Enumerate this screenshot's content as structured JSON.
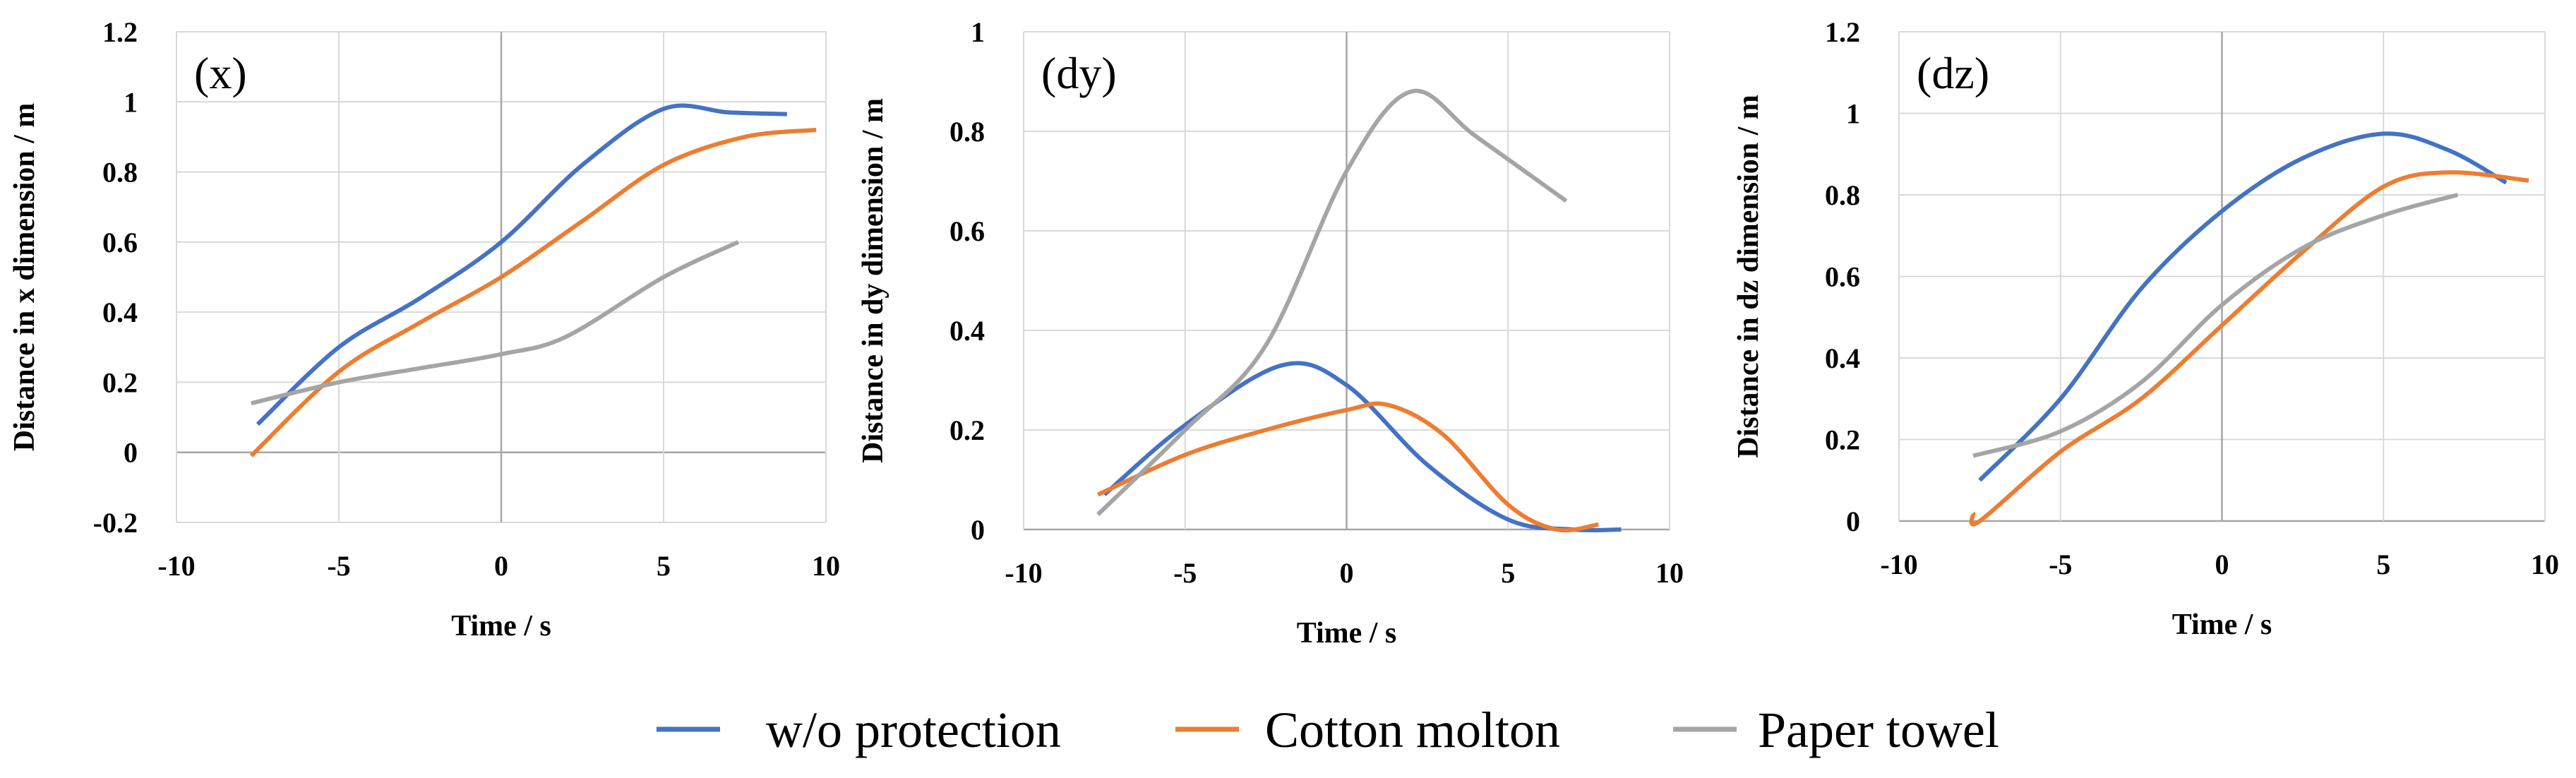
{
  "chart_data": {
    "type": "line",
    "colors": {
      "w/o protection": "#4472C4",
      "Cotton molton": "#ED7D31",
      "Paper towel": "#A5A5A5",
      "grid": "#D9D9D9",
      "zero_axis": "#A6A6A6"
    },
    "legend": {
      "placement": "bottom-center",
      "entries": [
        "w/o protection",
        "Cotton molton",
        "Paper towel"
      ]
    },
    "panels": [
      {
        "id": "x",
        "label": "(x)",
        "xlabel": "Time / s",
        "ylabel": "Distance in x dimension / m",
        "xlim": [
          -10,
          10
        ],
        "ylim": [
          -0.2,
          1.2
        ],
        "xticks": [
          -10,
          -5,
          0,
          5,
          10
        ],
        "xtick_labels": [
          "-10",
          "-5",
          "0",
          "5",
          "10"
        ],
        "yticks": [
          -0.2,
          0,
          0.2,
          0.4,
          0.6,
          0.8,
          1,
          1.2
        ],
        "ytick_labels": [
          "-0.2",
          "0",
          "0.2",
          "0.4",
          "0.6",
          "0.8",
          "1",
          "1.2"
        ],
        "series": [
          {
            "name": "w/o protection",
            "x": [
              -7.5,
              -5,
              -2.5,
              0,
              2.5,
              5,
              7,
              8.8
            ],
            "y": [
              0.08,
              0.3,
              0.44,
              0.6,
              0.82,
              0.98,
              0.97,
              0.965
            ]
          },
          {
            "name": "Cotton molton",
            "x": [
              -7.7,
              -5,
              -2.5,
              0,
              2.5,
              5,
              7.5,
              9.7
            ],
            "y": [
              -0.01,
              0.23,
              0.37,
              0.5,
              0.66,
              0.82,
              0.9,
              0.92
            ]
          },
          {
            "name": "Paper towel",
            "x": [
              -7.7,
              -5,
              -2.5,
              0,
              2,
              5,
              7.3
            ],
            "y": [
              0.14,
              0.2,
              0.24,
              0.28,
              0.33,
              0.5,
              0.6
            ]
          }
        ]
      },
      {
        "id": "dy",
        "label": "(dy)",
        "xlabel": "Time / s",
        "ylabel": "Distance in dy dimension / m",
        "xlim": [
          -10,
          10
        ],
        "ylim": [
          0,
          1
        ],
        "xticks": [
          -10,
          -5,
          0,
          5,
          10
        ],
        "xtick_labels": [
          "-10",
          "-5",
          "0",
          "5",
          "10"
        ],
        "yticks": [
          0,
          0.2,
          0.4,
          0.6,
          0.8,
          1
        ],
        "ytick_labels": [
          "0",
          "0.2",
          "0.4",
          "0.6",
          "0.8",
          "1"
        ],
        "series": [
          {
            "name": "w/o protection",
            "x": [
              -7.5,
              -5,
              -2,
              0,
              2.5,
              5,
              7,
              8.5
            ],
            "y": [
              0.07,
              0.21,
              0.33,
              0.29,
              0.13,
              0.02,
              0.0,
              0.0
            ]
          },
          {
            "name": "Cotton molton",
            "x": [
              -7.7,
              -5,
              -2.5,
              0,
              1.3,
              3,
              5,
              6.5,
              7.8
            ],
            "y": [
              0.07,
              0.15,
              0.2,
              0.24,
              0.25,
              0.19,
              0.05,
              0.0,
              0.01
            ]
          },
          {
            "name": "Paper towel",
            "x": [
              -7.7,
              -5,
              -2.5,
              0,
              2,
              4,
              6.8
            ],
            "y": [
              0.03,
              0.2,
              0.37,
              0.72,
              0.88,
              0.79,
              0.66
            ]
          }
        ]
      },
      {
        "id": "dz",
        "label": "(dz)",
        "xlabel": "Time / s",
        "ylabel": "Distance in dz dimension / m",
        "xlim": [
          -10,
          10
        ],
        "ylim": [
          0,
          1.2
        ],
        "xticks": [
          -10,
          -5,
          0,
          5,
          10
        ],
        "xtick_labels": [
          "-10",
          "-5",
          "0",
          "5",
          "10"
        ],
        "yticks": [
          0,
          0.2,
          0.4,
          0.6,
          0.8,
          1,
          1.2
        ],
        "ytick_labels": [
          "0",
          "0.2",
          "0.4",
          "0.6",
          "0.8",
          "1",
          "1.2"
        ],
        "series": [
          {
            "name": "w/o protection",
            "x": [
              -7.5,
              -5,
              -2.5,
              0,
              2.5,
              5,
              7,
              8.8
            ],
            "y": [
              0.1,
              0.3,
              0.57,
              0.76,
              0.89,
              0.95,
              0.91,
              0.83
            ]
          },
          {
            "name": "Cotton molton",
            "x": [
              -7.7,
              -7.5,
              -5,
              -2.5,
              0,
              2.5,
              5,
              7,
              9.5
            ],
            "y": [
              0.02,
              0.0,
              0.17,
              0.3,
              0.48,
              0.66,
              0.82,
              0.855,
              0.835
            ]
          },
          {
            "name": "Paper towel",
            "x": [
              -7.7,
              -5,
              -2.5,
              0,
              2.5,
              5,
              7.3
            ],
            "y": [
              0.16,
              0.22,
              0.34,
              0.53,
              0.67,
              0.75,
              0.8
            ]
          }
        ]
      }
    ]
  }
}
